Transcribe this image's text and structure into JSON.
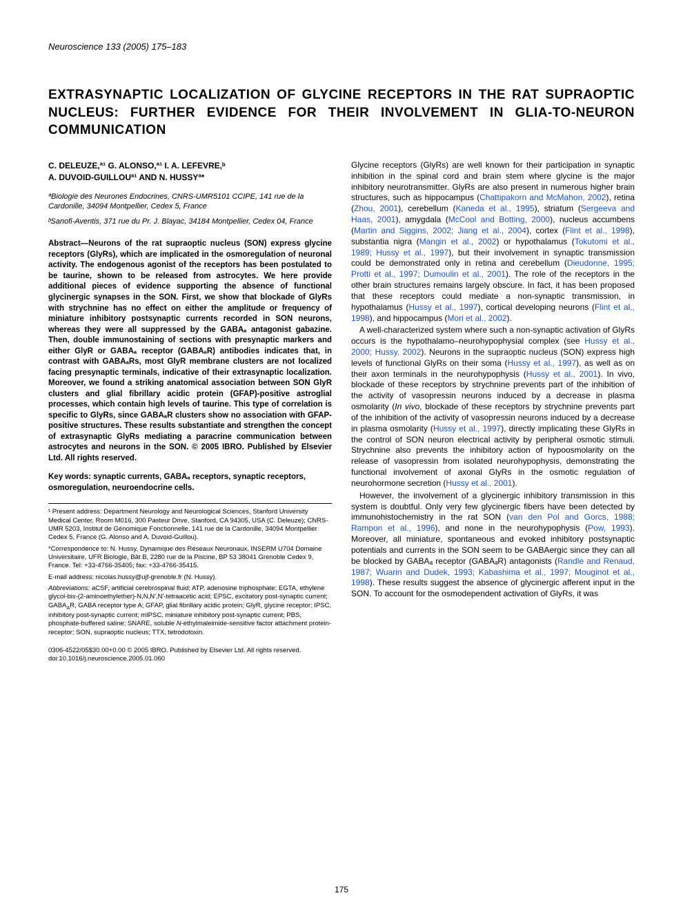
{
  "journal_header": "Neuroscience 133 (2005) 175–183",
  "title": "EXTRASYNAPTIC LOCALIZATION OF GLYCINE RECEPTORS IN THE RAT SUPRAOPTIC NUCLEUS: FURTHER EVIDENCE FOR THEIR INVOLVEMENT IN GLIA-TO-NEURON COMMUNICATION",
  "authors_line1": "C. DELEUZE,ª¹ G. ALONSO,ª¹ I. A. LEFEVRE,ᵇ",
  "authors_line2": "A. DUVOID-GUILLOUª¹ AND N. HUSSYª*",
  "affil_a": "ªBiologie des Neurones Endocrines, CNRS-UMR5101 CCIPE, 141 rue de la Cardonille, 34094 Montpellier, Cedex 5, France",
  "affil_b": "ᵇSanofi-Aventis, 371 rue du Pr. J. Blayac, 34184 Montpellier, Cedex 04, France",
  "abstract_text": "Abstract—Neurons of the rat supraoptic nucleus (SON) express glycine receptors (GlyRs), which are implicated in the osmoregulation of neuronal activity. The endogenous agonist of the receptors has been postulated to be taurine, shown to be released from astrocytes. We here provide additional pieces of evidence supporting the absence of functional glycinergic synapses in the SON. First, we show that blockade of GlyRs with strychnine has no effect on either the amplitude or frequency of miniature inhibitory postsynaptic currents recorded in SON neurons, whereas they were all suppressed by the GABAₐ antagonist gabazine. Then, double immunostaining of sections with presynaptic markers and either GlyR or GABAₐ receptor (GABAₐR) antibodies indicates that, in contrast with GABAₐRs, most GlyR membrane clusters are not localized facing presynaptic terminals, indicative of their extrasynaptic localization. Moreover, we found a striking anatomical association between SON GlyR clusters and glial fibrillary acidic protein (GFAP)-positive astroglial processes, which contain high levels of taurine. This type of correlation is specific to GlyRs, since GABAₐR clusters show no association with GFAP-positive structures. These results substantiate and strengthen the concept of extrasynaptic GlyRs mediating a paracrine communication between astrocytes and neurons in the SON. © 2005 IBRO. Published by Elsevier Ltd. All rights reserved.",
  "keywords": "Key words: synaptic currents, GABAₐ receptors, synaptic receptors, osmoregulation, neuroendocrine cells.",
  "footnote1": "¹ Present address: Department Neurology and Neurological Sciences, Stanford University Medical Center, Room M016, 300 Pasteur Drive, Stanford, CA 94305, USA (C. Deleuze); CNRS-UMR 5203, Institut de Génomique Fonctionnelle, 141 rue de la Cardonille, 34094 Montpellier Cedex 5, France (G. Alonso and A. Duvoid-Guillou).",
  "footnote_corr": "*Correspondence to: N. Hussy, Dynamique des Réseaux Neuronaux, INSERM U704 Domaine Universitaire, UFR Biologie, Bât B, 2280 rue de la Piscine, BP 53 38041 Grenoble Cedex 9, France. Tel: +33-4766-35405; fax: +33-4766-35415.",
  "footnote_email": "E-mail address: nicolas.hussy@ujf-grenoble.fr (N. Hussy).",
  "abbreviations": "Abbreviations: aCSF, artificial cerebrospinal fluid; ATP, adenosine triphosphate; EGTA, ethylene glycol-bis-(2-aminoethylether)-N,N,N',N'-tetraacetic acid; EPSC, excitatory post-synaptic current; GABAₐR, GABA receptor type A; GFAP, glial fibrillary acidic protein; GlyR, glycine receptor; IPSC, inhibitory post-synaptic current; mIPSC, miniature inhibitory post-synaptic current; PBS, phosphate-buffered saline; SNARE, soluble N-ethylmaleimide-sensitive factor attachment protein-receptor; SON, supraoptic nucleus; TTX, tetrodotoxin.",
  "body": {
    "p1a": "Glycine receptors (GlyRs) are well known for their participation in synaptic inhibition in the spinal cord and brain stem where glycine is the major inhibitory neurotransmitter. GlyRs are also present in numerous higher brain structures, such as hippocampus (",
    "c1": "Chattipakorn and McMahon, 2002",
    "p1b": "), retina (",
    "c2": "Zhou, 2001",
    "p1c": "), cerebellum (",
    "c3": "Kaneda et al., 1995",
    "p1d": "), striatum (",
    "c4": "Sergeeva and Haas, 2001",
    "p1e": "), amygdala (",
    "c5": "McCool and Botting, 2000",
    "p1f": "), nucleus accumbens (",
    "c6": "Martin and Siggins, 2002; Jiang et al., 2004",
    "p1g": "), cortex (",
    "c7": "Flint et al., 1998",
    "p1h": "), substantia nigra (",
    "c8": "Mangin et al., 2002",
    "p1i": ") or hypothalamus (",
    "c9": "Tokutomi et al., 1989; Hussy et al., 1997",
    "p1j": "), but their involvement in synaptic transmission could be demonstrated only in retina and cerebellum (",
    "c10": "Dieudonne, 1995; Protti et al., 1997; Dumoulin et al., 2001",
    "p1k": "). The role of the receptors in the other brain structures remains largely obscure. In fact, it has been proposed that these receptors could mediate a non-synaptic transmission, in hypothalamus (",
    "c11": "Hussy et al., 1997",
    "p1l": "), cortical developing neurons (",
    "c12": "Flint et al., 1998",
    "p1m": "), and hippocampus (",
    "c13": "Mori et al., 2002",
    "p1n": ").",
    "p2a": "A well-characterized system where such a non-synaptic activation of GlyRs occurs is the hypothalamo–neurohypophysial complex (see ",
    "c14": "Hussy et al., 2000; Hussy, 2002",
    "p2b": "). Neurons in the supraoptic nucleus (SON) express high levels of functional GlyRs on their soma (",
    "c15": "Hussy et al., 1997",
    "p2c": "), as well as on their axon terminals in the neurohypophysis (",
    "c16": "Hussy et al., 2001",
    "p2d": "). In vivo, blockade of these receptors by strychnine prevents part of the inhibition of the activity of vasopressin neurons induced by a decrease in plasma osmolarity (",
    "c17": "Hussy et al., 1997",
    "p2e": "), directly implicating these GlyRs in the control of SON neuron electrical activity by peripheral osmotic stimuli. Strychnine also prevents the inhibitory action of hypoosmolarity on the release of vasopressin from isolated neurohypophysis, demonstrating the functional involvement of axonal GlyRs in the osmotic regulation of neurohormone secretion (",
    "c18": "Hussy et al., 2001",
    "p2f": ").",
    "p3a": "However, the involvement of a glycinergic inhibitory transmission in this system is doubtful. Only very few glycinergic fibers have been detected by immunohistochemistry in the rat SON (",
    "c19": "van den Pol and Gorcs, 1988; Rampon et al., 1996",
    "p3b": "), and none in the neurohypophysis (",
    "c20": "Pow, 1993",
    "p3c": "). Moreover, all miniature, spontaneous and evoked inhibitory postsynaptic potentials and currents in the SON seem to be GABAergic since they can all be blocked by GABAₐ receptor (GABAₐR) antagonists (",
    "c21": "Randle and Renaud, 1987; Wuarin and Dudek, 1993; Kabashima et al., 1997; Mouginot et al., 1998",
    "p3d": "). These results suggest the absence of glycinergic afferent input in the SON. To account for the osmodependent activation of GlyRs, it was"
  },
  "doi_copyright": "0306-4522/05$30.00+0.00 © 2005 IBRO. Published by Elsevier Ltd. All rights reserved.",
  "doi": "doi:10.1016/j.neuroscience.2005.01.060",
  "page_num": "175"
}
